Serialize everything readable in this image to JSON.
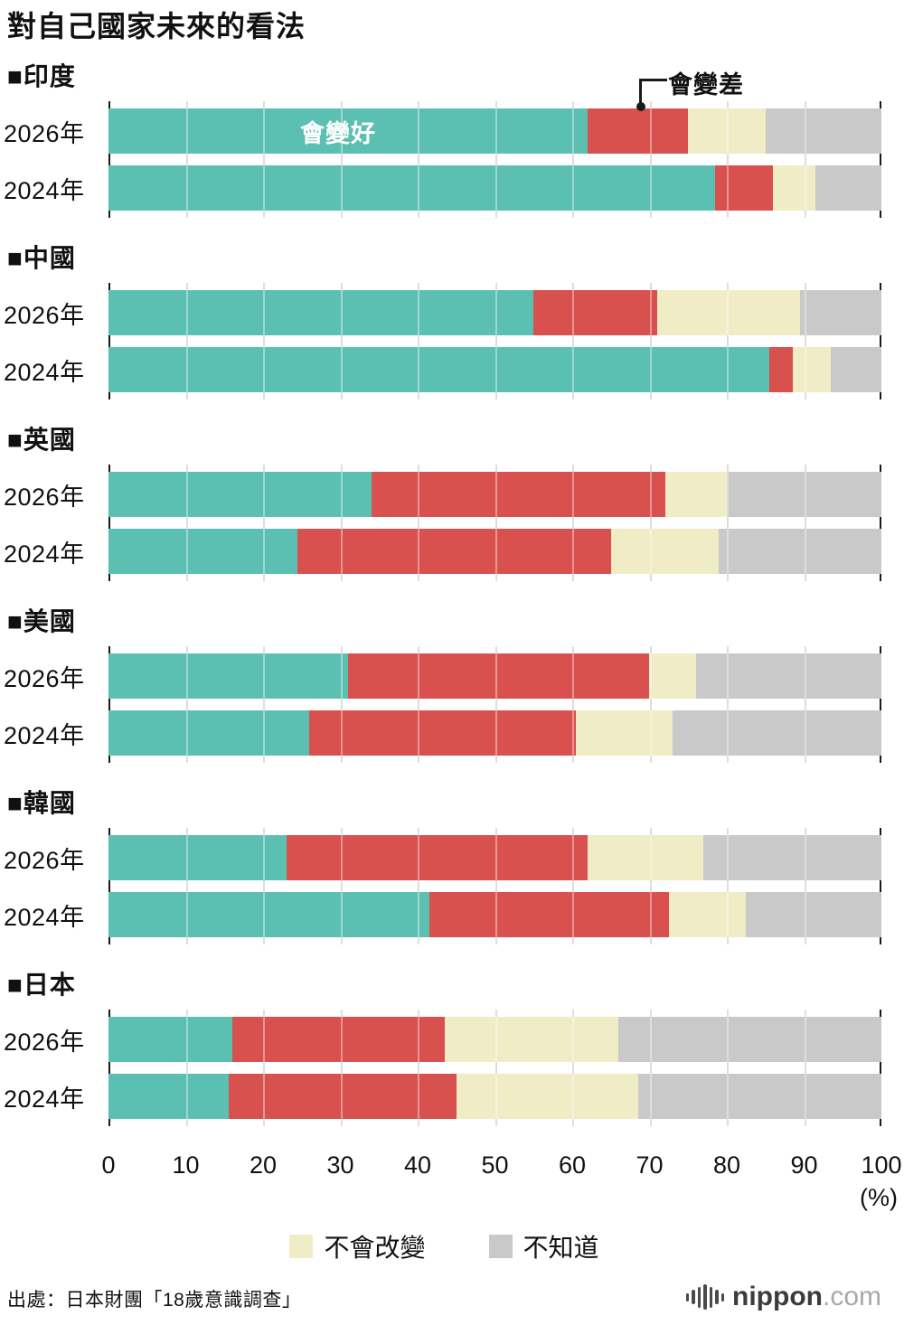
{
  "title": "對自己國家未來的看法",
  "chart_data": {
    "type": "bar",
    "stacked": true,
    "orientation": "horizontal",
    "unit": "%",
    "xlim": [
      0,
      100
    ],
    "x_ticks": [
      0,
      10,
      20,
      30,
      40,
      50,
      60,
      70,
      80,
      90,
      100
    ],
    "x_axis_unit_label": "(%)",
    "grid": true,
    "series": [
      {
        "key": "better",
        "label": "會變好",
        "color": "#5bc0b2"
      },
      {
        "key": "worse",
        "label": "會變差",
        "color": "#d8514e"
      },
      {
        "key": "no-change",
        "label": "不會改變",
        "color": "#f0ecc6"
      },
      {
        "key": "dont-know",
        "label": "不知道",
        "color": "#c9c9c9"
      }
    ],
    "annotations": {
      "better": "會變好",
      "worse": "會變差"
    },
    "groups": [
      {
        "key": "india",
        "country": "■印度",
        "rows": [
          {
            "year": "2026年",
            "values": [
              62,
              13,
              10,
              15
            ]
          },
          {
            "year": "2024年",
            "values": [
              78.5,
              7.5,
              5.5,
              8.5
            ]
          }
        ]
      },
      {
        "key": "china",
        "country": "■中國",
        "rows": [
          {
            "year": "2026年",
            "values": [
              55,
              16,
              18.5,
              10.5
            ]
          },
          {
            "year": "2024年",
            "values": [
              85.5,
              3,
              5,
              6.5
            ]
          }
        ]
      },
      {
        "key": "uk",
        "country": "■英國",
        "rows": [
          {
            "year": "2026年",
            "values": [
              34,
              38,
              8,
              20
            ]
          },
          {
            "year": "2024年",
            "values": [
              24.5,
              40.5,
              14,
              21
            ]
          }
        ]
      },
      {
        "key": "usa",
        "country": "■美國",
        "rows": [
          {
            "year": "2026年",
            "values": [
              31,
              39,
              6,
              24
            ]
          },
          {
            "year": "2024年",
            "values": [
              26,
              34.5,
              12.5,
              27
            ]
          }
        ]
      },
      {
        "key": "korea",
        "country": "■韓國",
        "rows": [
          {
            "year": "2026年",
            "values": [
              23,
              39,
              15,
              23
            ]
          },
          {
            "year": "2024年",
            "values": [
              41.5,
              31,
              10,
              17.5
            ]
          }
        ]
      },
      {
        "key": "japan",
        "country": "■日本",
        "rows": [
          {
            "year": "2026年",
            "values": [
              16,
              27.5,
              22.5,
              34
            ]
          },
          {
            "year": "2024年",
            "values": [
              15.5,
              29.5,
              23.5,
              31.5
            ]
          }
        ]
      }
    ]
  },
  "legend": {
    "items": [
      {
        "key": "no-change",
        "label": "不會改變",
        "color": "#f0ecc6"
      },
      {
        "key": "dont-know",
        "label": "不知道",
        "color": "#c9c9c9"
      }
    ]
  },
  "source": "出處：日本財團「18歲意識調查」",
  "logo": {
    "name": "nippon",
    "tld": ".com"
  }
}
